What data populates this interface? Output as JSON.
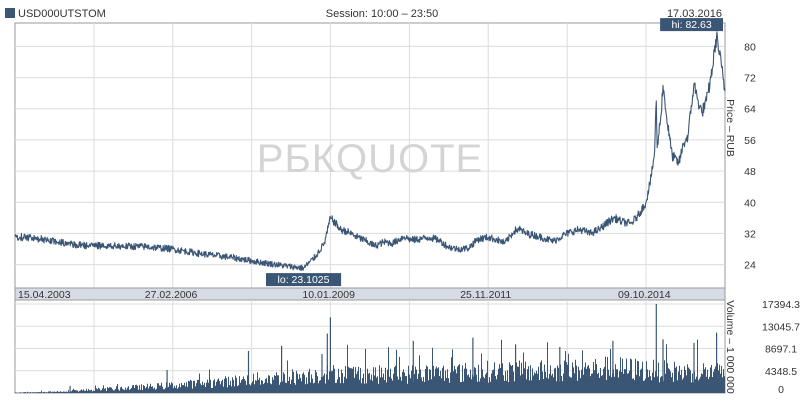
{
  "header": {
    "symbol": "USD000UTSTOM",
    "session": "Session: 10:00 – 23:50",
    "date": "17.03.2016"
  },
  "watermark": "РБКQUOTE",
  "colors": {
    "series": "#3b5674",
    "grid": "#dcdcdc",
    "frame": "#9a9a9a",
    "axis_band": "#d6dce4",
    "callout_bg": "#3b5674",
    "callout_text": "#ffffff",
    "watermark": "#d4d4d4"
  },
  "chart_data": [
    {
      "type": "line",
      "name": "price",
      "ylabel": "Price – RUB",
      "ylim": [
        18,
        86
      ],
      "yticks": [
        "24",
        "32",
        "40",
        "48",
        "56",
        "64",
        "72",
        "80"
      ],
      "xlim": [
        "2003-04-15",
        "2016-03-17"
      ],
      "xtick_labels": [
        "15.04.2003",
        "27.02.2006",
        "10.01.2009",
        "25.11.2011",
        "09.10.2014"
      ],
      "grid": true,
      "annotations": {
        "hi": {
          "label": "hi: 82.63",
          "date": "2016-01-21",
          "value": 82.63
        },
        "lo": {
          "label": "lo: 23.1025",
          "date": "2008-07-15",
          "value": 23.1025
        }
      },
      "series": [
        {
          "x": [
            "2003-04-15",
            "2003-10-01",
            "2004-06-01",
            "2005-01-01",
            "2005-09-01",
            "2006-02-27",
            "2006-09-01",
            "2007-04-01",
            "2007-10-01",
            "2008-04-01",
            "2008-07-15",
            "2008-10-01",
            "2008-12-01",
            "2009-01-10",
            "2009-02-15",
            "2009-03-15",
            "2009-05-01",
            "2009-07-01",
            "2009-09-01",
            "2009-11-01",
            "2010-01-01",
            "2010-03-01",
            "2010-05-15",
            "2010-07-01",
            "2010-09-01",
            "2010-11-01",
            "2011-01-01",
            "2011-03-01",
            "2011-05-01",
            "2011-07-15",
            "2011-09-15",
            "2011-11-25",
            "2012-01-15",
            "2012-03-15",
            "2012-05-15",
            "2012-06-15",
            "2012-08-01",
            "2012-10-01",
            "2012-12-01",
            "2013-02-01",
            "2013-04-01",
            "2013-06-01",
            "2013-08-01",
            "2013-10-01",
            "2013-12-01",
            "2014-02-01",
            "2014-03-15",
            "2014-05-01",
            "2014-07-01",
            "2014-08-15",
            "2014-10-09",
            "2014-11-15",
            "2014-12-05",
            "2014-12-16",
            "2014-12-22",
            "2015-01-15",
            "2015-01-30",
            "2015-03-01",
            "2015-04-01",
            "2015-05-15",
            "2015-06-15",
            "2015-07-15",
            "2015-08-24",
            "2015-09-15",
            "2015-10-15",
            "2015-11-15",
            "2015-12-15",
            "2016-01-21",
            "2016-02-10",
            "2016-03-17"
          ],
          "values": [
            31.2,
            30.6,
            29.0,
            28.8,
            28.6,
            28.0,
            26.8,
            25.8,
            24.6,
            23.6,
            23.1025,
            26.0,
            29.5,
            36.0,
            34.5,
            33.0,
            32.5,
            31.2,
            30.1,
            28.8,
            29.8,
            29.5,
            31.2,
            30.3,
            30.6,
            31.0,
            30.3,
            28.6,
            28.0,
            28.2,
            30.5,
            31.0,
            30.5,
            29.5,
            32.6,
            33.2,
            32.0,
            31.5,
            30.8,
            30.0,
            31.4,
            32.5,
            33.0,
            32.0,
            33.0,
            35.0,
            36.0,
            35.0,
            34.5,
            36.5,
            40.0,
            47.0,
            53.0,
            66.0,
            54.0,
            62.0,
            70.0,
            60.0,
            52.0,
            50.0,
            55.0,
            57.0,
            70.5,
            66.5,
            63.0,
            66.0,
            72.0,
            82.63,
            78.0,
            68.5
          ]
        }
      ]
    },
    {
      "type": "bar",
      "name": "volume",
      "ylabel": "Volume – 1 000 000",
      "ylim": [
        0,
        17394.3
      ],
      "yticks": [
        "0",
        "4348.5",
        "8697.1",
        "13045.7",
        "17394.3"
      ],
      "xlim": [
        "2003-04-15",
        "2016-03-17"
      ],
      "grid": true,
      "envelope": {
        "x": [
          "2003-04-15",
          "2004-01-01",
          "2004-07-01",
          "2005-01-01",
          "2005-07-01",
          "2006-01-01",
          "2006-07-01",
          "2007-01-01",
          "2007-07-01",
          "2008-01-01",
          "2008-07-01",
          "2009-01-10",
          "2009-07-01",
          "2010-01-01",
          "2010-07-01",
          "2011-01-01",
          "2011-07-01",
          "2012-01-01",
          "2012-07-01",
          "2013-01-01",
          "2013-07-01",
          "2014-01-01",
          "2014-07-01",
          "2015-01-01",
          "2015-07-01",
          "2016-01-01",
          "2016-03-17"
        ],
        "values": [
          150,
          350,
          700,
          1100,
          1500,
          1900,
          2400,
          2900,
          3500,
          4000,
          4500,
          5300,
          5200,
          4900,
          5100,
          5300,
          5500,
          5900,
          5800,
          5900,
          6100,
          6600,
          6400,
          5900,
          5600,
          5700,
          5000
        ]
      },
      "spikes": [
        {
          "date": "2004-04-15",
          "value": 1400
        },
        {
          "date": "2006-01-20",
          "value": 4500
        },
        {
          "date": "2007-07-15",
          "value": 8200
        },
        {
          "date": "2008-02-20",
          "value": 9200
        },
        {
          "date": "2008-11-15",
          "value": 7600
        },
        {
          "date": "2008-12-20",
          "value": 11600
        },
        {
          "date": "2009-01-10",
          "value": 14800
        },
        {
          "date": "2010-07-15",
          "value": 10200
        },
        {
          "date": "2011-08-15",
          "value": 10800
        },
        {
          "date": "2012-05-25",
          "value": 9500
        },
        {
          "date": "2013-03-15",
          "value": 9000
        },
        {
          "date": "2014-03-03",
          "value": 10200
        },
        {
          "date": "2014-12-16",
          "value": 17394.3
        },
        {
          "date": "2015-01-30",
          "value": 10500
        },
        {
          "date": "2015-08-24",
          "value": 9800
        },
        {
          "date": "2016-01-21",
          "value": 11800
        }
      ]
    }
  ]
}
